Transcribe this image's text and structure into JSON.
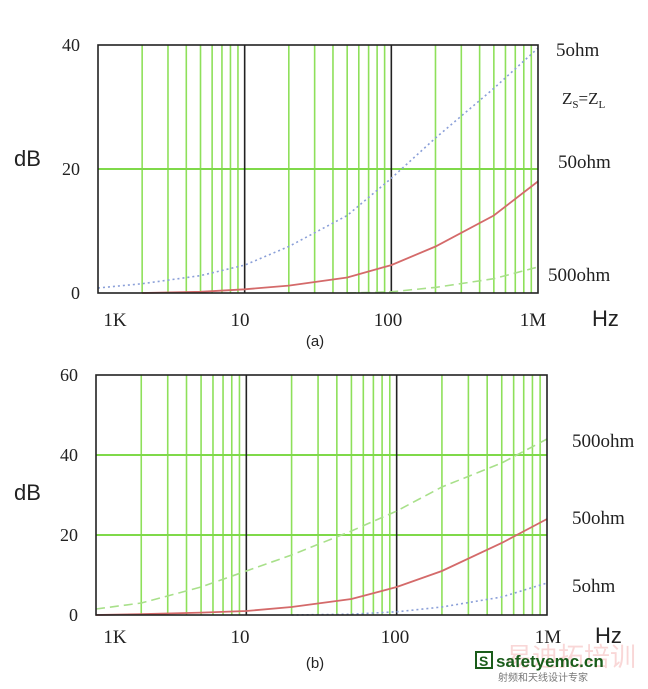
{
  "chart_data": [
    {
      "type": "line",
      "caption": "(a)",
      "xscale": "log",
      "xlim": [
        1000,
        1000000
      ],
      "ylim": [
        0,
        40
      ],
      "ylabel": "dB",
      "xlabel": "Hz",
      "x_ticks": [
        "1K",
        "10",
        "100",
        "1M"
      ],
      "y_ticks": [
        "0",
        "20",
        "40"
      ],
      "grid": true,
      "annotation": "ZS=ZL",
      "series": [
        {
          "name": "5ohm",
          "color": "#8a9fd8",
          "style": "dotted",
          "x": [
            1000,
            2000,
            5000,
            10000,
            20000,
            50000,
            100000,
            200000,
            500000,
            1000000
          ],
          "y": [
            0.8,
            1.5,
            2.8,
            4.5,
            7.5,
            12.5,
            18.5,
            25,
            33,
            39.5
          ]
        },
        {
          "name": "50ohm",
          "color": "#d46a6a",
          "style": "solid",
          "x": [
            2000,
            5000,
            10000,
            20000,
            50000,
            100000,
            200000,
            500000,
            1000000
          ],
          "y": [
            0,
            0.2,
            0.6,
            1.2,
            2.5,
            4.5,
            7.5,
            12.5,
            18
          ]
        },
        {
          "name": "500ohm",
          "color": "#a8e08a",
          "style": "dashed",
          "x": [
            50000,
            100000,
            200000,
            500000,
            1000000
          ],
          "y": [
            0,
            0.2,
            0.9,
            2.3,
            4.2
          ]
        }
      ]
    },
    {
      "type": "line",
      "caption": "(b)",
      "xscale": "log",
      "xlim": [
        1000,
        1000000
      ],
      "ylim": [
        0,
        60
      ],
      "ylabel": "dB",
      "xlabel": "Hz",
      "x_ticks": [
        "1K",
        "10",
        "100",
        "1M"
      ],
      "y_ticks": [
        "0",
        "20",
        "40",
        "60"
      ],
      "grid": true,
      "series": [
        {
          "name": "500ohm",
          "color": "#a8e08a",
          "style": "dashed",
          "x": [
            1000,
            2000,
            5000,
            10000,
            20000,
            50000,
            100000,
            200000,
            500000,
            1000000
          ],
          "y": [
            1.5,
            3,
            7,
            11,
            15,
            21,
            26,
            32,
            38,
            44
          ]
        },
        {
          "name": "50ohm",
          "color": "#d46a6a",
          "style": "solid",
          "x": [
            1000,
            2000,
            5000,
            10000,
            20000,
            50000,
            100000,
            200000,
            500000,
            1000000
          ],
          "y": [
            0,
            0.2,
            0.6,
            1,
            2,
            4,
            7,
            11,
            18,
            24
          ]
        },
        {
          "name": "5ohm",
          "color": "#8a9fd8",
          "style": "dotted",
          "x": [
            20000,
            50000,
            100000,
            200000,
            500000,
            1000000
          ],
          "y": [
            0,
            0.2,
            0.8,
            2,
            4.5,
            8
          ]
        }
      ]
    }
  ],
  "watermark": {
    "site": "safetyemc.cn",
    "badge": "S",
    "tagline": "射频和天线设计专家",
    "overlay": "易迪拓培训"
  }
}
